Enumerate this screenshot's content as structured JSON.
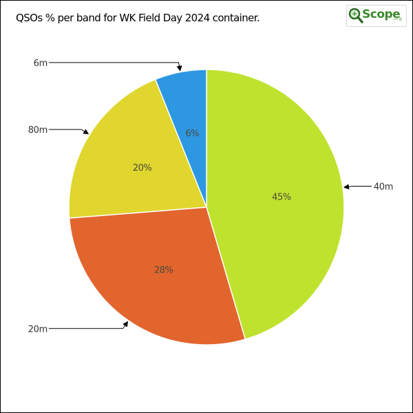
{
  "logo": {
    "text": "Scope",
    "sub": ".org"
  },
  "chart_data": {
    "type": "pie",
    "title": "QSOs % per band for WK Field Day 2024 container.",
    "categories": [
      "40m",
      "20m",
      "80m",
      "6m"
    ],
    "values": [
      45,
      28,
      20,
      6
    ],
    "labels": [
      "45%",
      "28%",
      "20%",
      "6%"
    ],
    "colors": [
      "#bfe22e",
      "#e2652e",
      "#e0d62e",
      "#2e97e2"
    ],
    "legend": "none",
    "label_placement": "outside-with-arrows"
  }
}
